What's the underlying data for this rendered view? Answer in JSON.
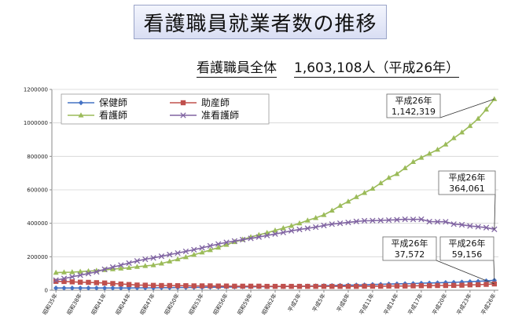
{
  "page": {
    "title": "看護職員就業者数の推移",
    "subtitle_label": "看護職員全体",
    "subtitle_value": "1,603,108人（平成26年）"
  },
  "chart_data": {
    "type": "line",
    "ylim": [
      0,
      1200000
    ],
    "yticks": [
      "0",
      "200000",
      "400000",
      "600000",
      "800000",
      "1000000",
      "1200000"
    ],
    "categories": [
      "昭和35年",
      "昭和36年",
      "昭和37年",
      "昭和38年",
      "昭和39年",
      "昭和40年",
      "昭和41年",
      "昭和42年",
      "昭和43年",
      "昭和44年",
      "昭和45年",
      "昭和46年",
      "昭和47年",
      "昭和48年",
      "昭和49年",
      "昭和50年",
      "昭和51年",
      "昭和52年",
      "昭和53年",
      "昭和54年",
      "昭和55年",
      "昭和56年",
      "昭和57年",
      "昭和58年",
      "昭和59年",
      "昭和60年",
      "昭和61年",
      "昭和62年",
      "昭和63年",
      "平成元年",
      "平成2年",
      "平成3年",
      "平成4年",
      "平成5年",
      "平成6年",
      "平成7年",
      "平成8年",
      "平成9年",
      "平成10年",
      "平成11年",
      "平成12年",
      "平成13年",
      "平成14年",
      "平成15年",
      "平成16年",
      "平成17年",
      "平成18年",
      "平成19年",
      "平成20年",
      "平成21年",
      "平成22年",
      "平成23年",
      "平成24年",
      "平成25年",
      "平成26年"
    ],
    "xtick_labels": [
      "昭和35年",
      "昭和38年",
      "昭和41年",
      "昭和44年",
      "昭和47年",
      "昭和50年",
      "昭和53年",
      "昭和56年",
      "昭和59年",
      "昭和62年",
      "平成2年",
      "平成5年",
      "平成8年",
      "平成11年",
      "平成14年",
      "平成17年",
      "平成20年",
      "平成23年",
      "平成26年"
    ],
    "grid": true,
    "legend_position": "top-left",
    "series": [
      {
        "name": "保健師",
        "color": "#4472c4",
        "marker": "diamond",
        "values": [
          13000,
          13000,
          13000,
          13000,
          13000,
          13000,
          13000,
          13000,
          13000,
          13000,
          14000,
          14000,
          14000,
          15000,
          15000,
          16000,
          16000,
          17000,
          17000,
          18000,
          18000,
          19000,
          19000,
          20000,
          20000,
          21000,
          21000,
          22000,
          22000,
          23000,
          24000,
          25000,
          26000,
          27000,
          28000,
          29000,
          30000,
          31000,
          32000,
          34000,
          35000,
          37000,
          38000,
          39000,
          40000,
          42000,
          43000,
          44000,
          46000,
          47000,
          49000,
          51000,
          53000,
          56000,
          59156
        ]
      },
      {
        "name": "助産師",
        "color": "#c0504d",
        "marker": "square",
        "values": [
          53000,
          52000,
          50000,
          48000,
          47000,
          45000,
          43000,
          40000,
          37000,
          34000,
          31000,
          30000,
          29000,
          28000,
          28000,
          27000,
          27000,
          26000,
          26000,
          26000,
          25000,
          25000,
          24000,
          24000,
          24000,
          24000,
          23000,
          23000,
          23000,
          23000,
          23000,
          23000,
          23000,
          23000,
          23000,
          23000,
          23000,
          23000,
          24000,
          24000,
          24000,
          25000,
          25000,
          25000,
          26000,
          27000,
          27000,
          28000,
          28000,
          29000,
          30000,
          32000,
          33000,
          35000,
          37572
        ]
      },
      {
        "name": "看護師",
        "color": "#9bbb59",
        "marker": "triangle",
        "values": [
          105000,
          107000,
          108000,
          111000,
          114000,
          117000,
          121000,
          126000,
          130000,
          134000,
          140000,
          145000,
          150000,
          160000,
          172000,
          185000,
          198000,
          212000,
          226000,
          240000,
          255000,
          272000,
          288000,
          303000,
          318000,
          331000,
          343000,
          357000,
          371000,
          385000,
          400000,
          417000,
          432000,
          450000,
          476000,
          505000,
          530000,
          557000,
          582000,
          607000,
          640000,
          672000,
          695000,
          730000,
          767000,
          792000,
          816000,
          840000,
          871000,
          909000,
          943000,
          982000,
          1025000,
          1080000,
          1142319
        ]
      },
      {
        "name": "准看護師",
        "color": "#8064a2",
        "marker": "x",
        "values": [
          60000,
          70000,
          80000,
          90000,
          100000,
          110000,
          125000,
          138000,
          150000,
          162000,
          175000,
          185000,
          193000,
          203000,
          213000,
          222000,
          232000,
          242000,
          253000,
          265000,
          276000,
          286000,
          294000,
          302000,
          310000,
          318000,
          327000,
          336000,
          345000,
          355000,
          363000,
          370000,
          377000,
          387000,
          395000,
          400000,
          405000,
          411000,
          415000,
          416000,
          417000,
          419000,
          421000,
          424000,
          423000,
          424000,
          410000,
          409000,
          409000,
          395000,
          391000,
          384000,
          379000,
          374000,
          364061
        ]
      }
    ],
    "annotations": [
      {
        "series": "看護師",
        "line1": "平成26年",
        "line2": "1,142,319"
      },
      {
        "series": "准看護師",
        "line1": "平成26年",
        "line2": "364,061"
      },
      {
        "series": "助産師",
        "line1": "平成26年",
        "line2": "37,572"
      },
      {
        "series": "保健師",
        "line1": "平成26年",
        "line2": "59,156"
      }
    ]
  }
}
